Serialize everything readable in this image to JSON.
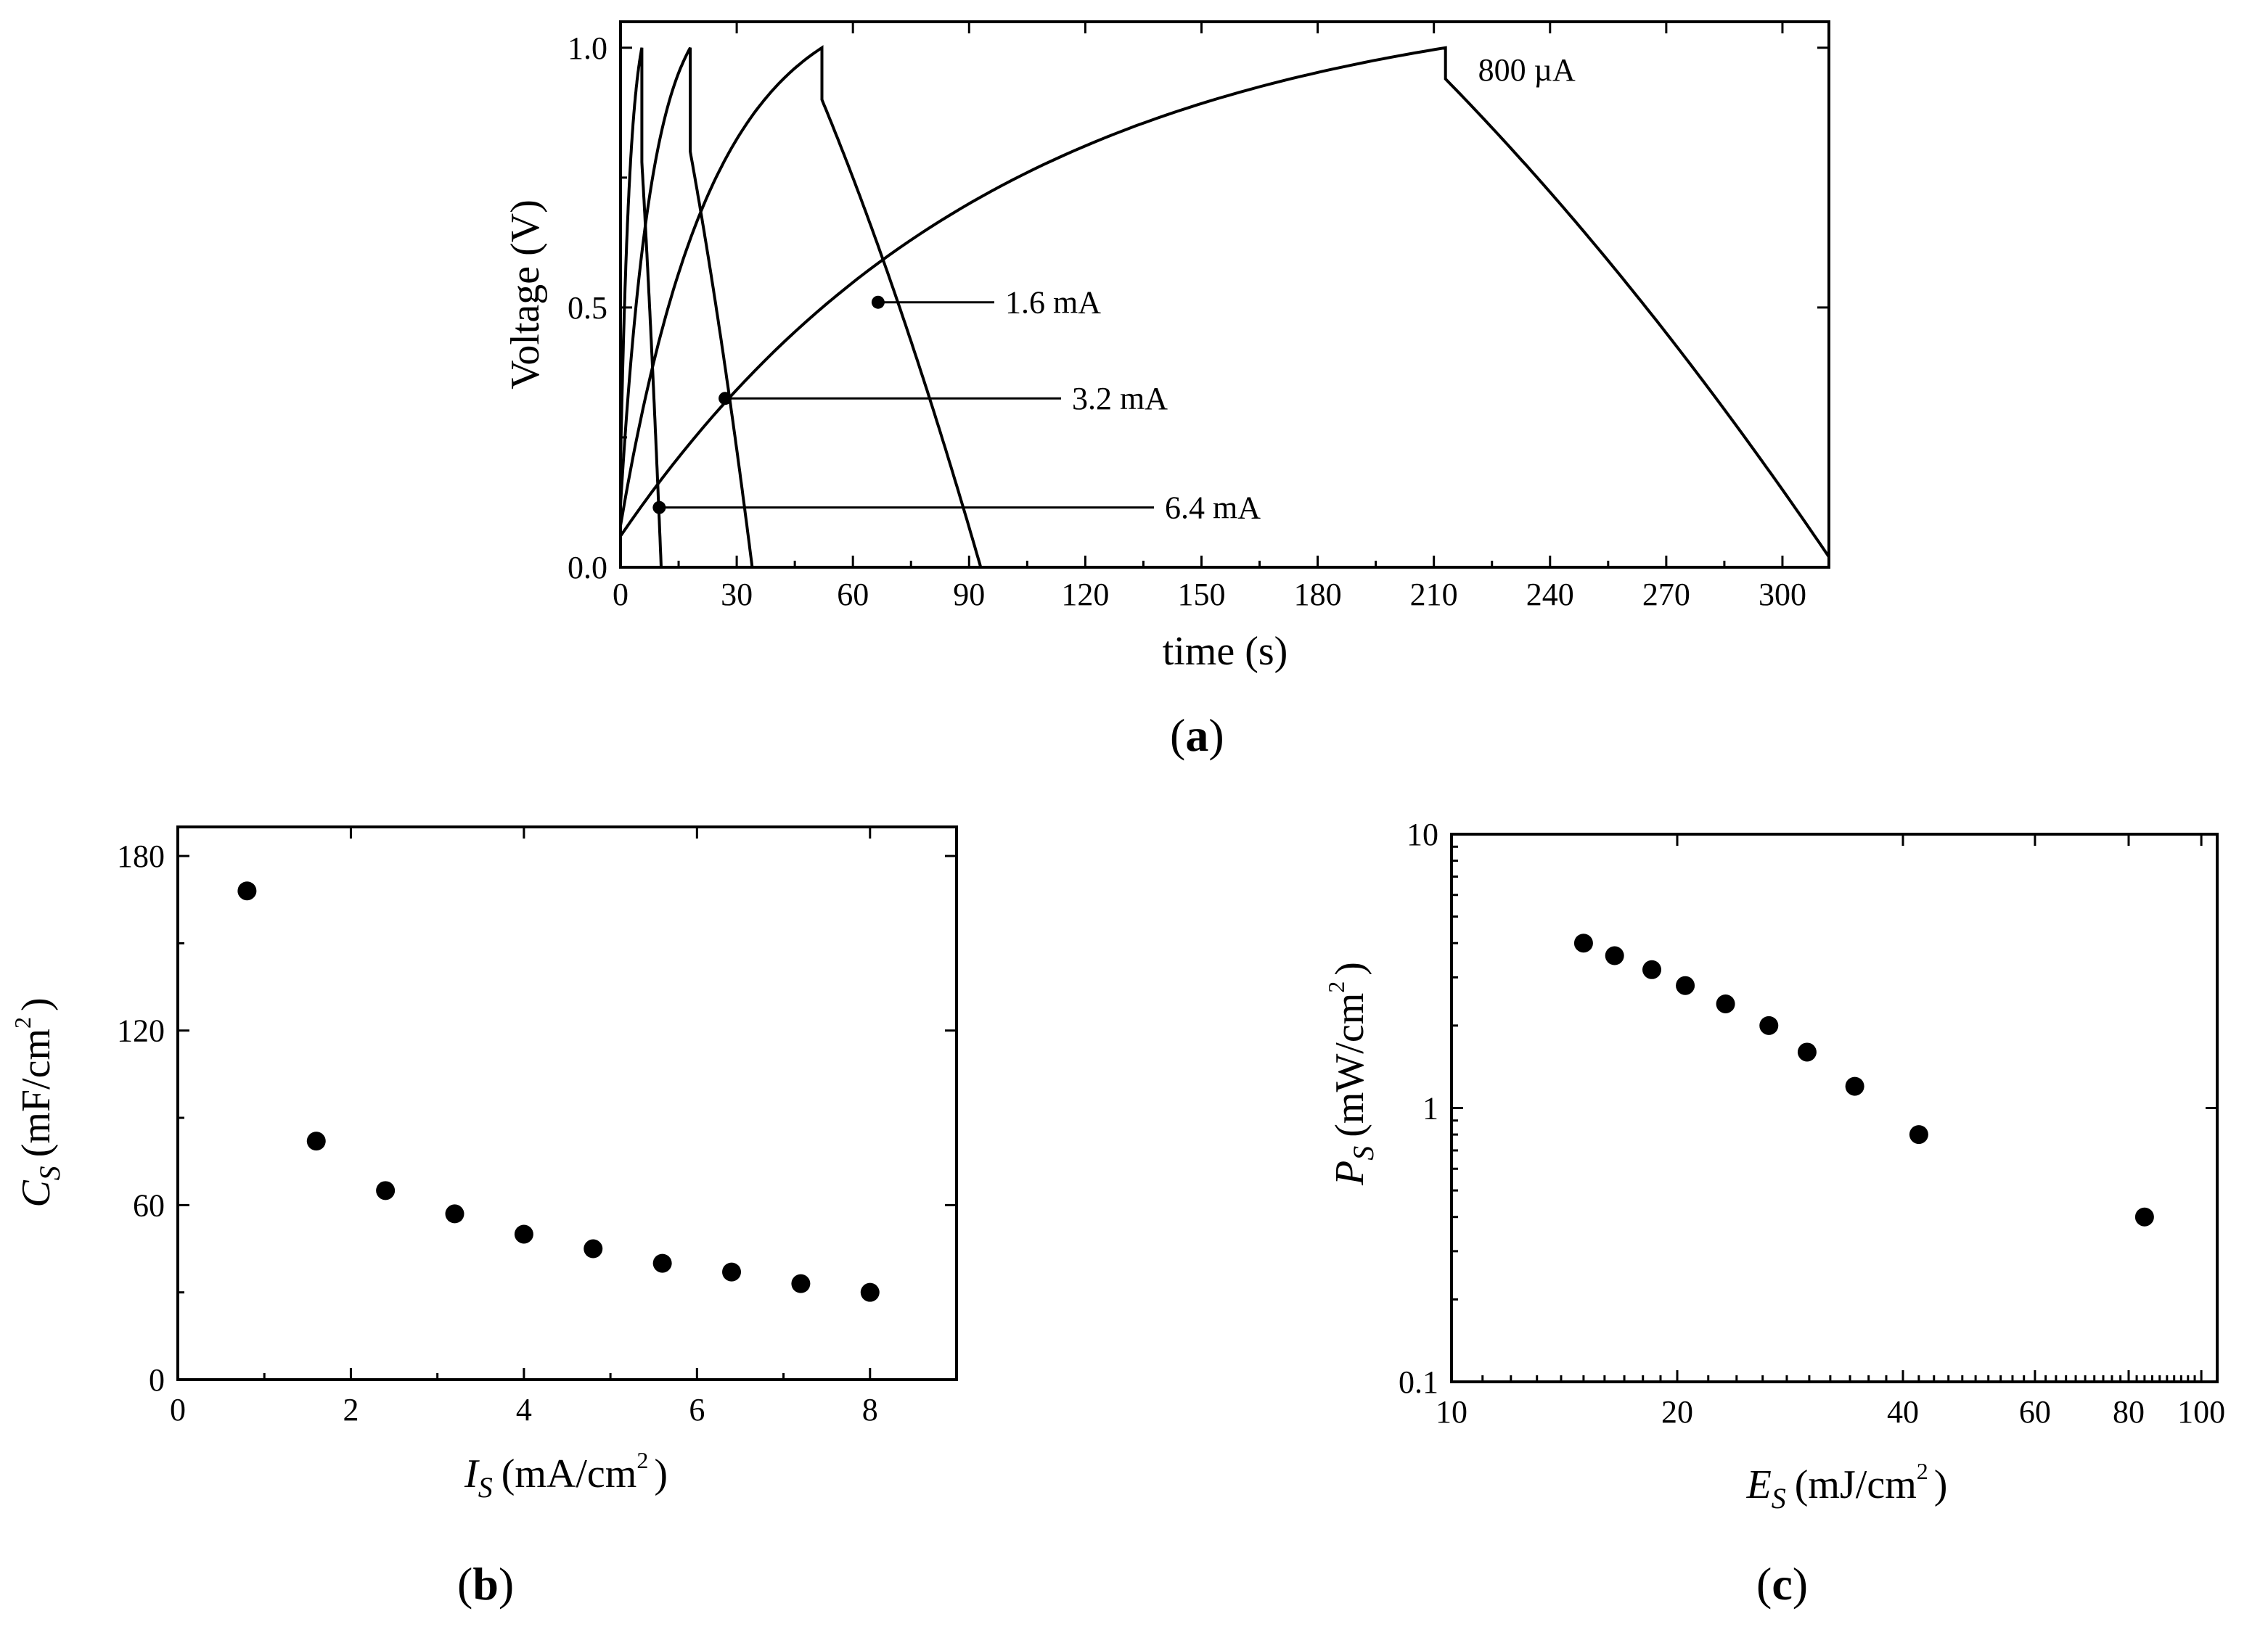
{
  "chart_data": [
    {
      "type": "line",
      "panel": "a",
      "xlabel": "time (s)",
      "ylabel": "Voltage (V)",
      "xlim": [
        0,
        312
      ],
      "ylim": [
        0,
        1.05
      ],
      "xticks": [
        0,
        30,
        60,
        90,
        120,
        150,
        180,
        210,
        240,
        270,
        300
      ],
      "yticks": [
        0.0,
        0.5,
        1.0
      ],
      "ytick_labels": [
        "0.0",
        "0.5",
        "1.0"
      ],
      "series": [
        {
          "name": "6.4 mA",
          "charge_time": 5.5,
          "discharge_end": 10.5,
          "drop_to": 0.78,
          "start_v": 0.2,
          "label_point": [
            10,
            0.115
          ]
        },
        {
          "name": "3.2 mA",
          "charge_time": 18,
          "discharge_end": 34,
          "drop_to": 0.8,
          "start_v": 0.12,
          "label_point": [
            27,
            0.325
          ]
        },
        {
          "name": "1.6 mA",
          "charge_time": 52,
          "discharge_end": 93,
          "drop_to": 0.9,
          "start_v": 0.08,
          "label_point": [
            66.5,
            0.51
          ]
        },
        {
          "name": "800 µA",
          "charge_time": 213,
          "discharge_end": 312,
          "drop_to": 0.94,
          "start_v": 0.06,
          "end_v": 0.02
        }
      ]
    },
    {
      "type": "scatter",
      "panel": "b",
      "xlabel": "I",
      "xlabel_sub": "S",
      "xlabel_unit": "(mA/cm",
      "xlabel_sup": "2",
      "ylabel": "C",
      "ylabel_sub": "S",
      "ylabel_unit": "(mF/cm",
      "ylabel_sup": "2",
      "xlim": [
        0,
        9
      ],
      "ylim": [
        0,
        190
      ],
      "xticks": [
        0,
        2,
        4,
        6,
        8
      ],
      "yticks": [
        0,
        60,
        120,
        180
      ],
      "x": [
        0.8,
        1.6,
        2.4,
        3.2,
        4.0,
        4.8,
        5.6,
        6.4,
        7.2,
        8.0
      ],
      "y": [
        168,
        82,
        65,
        57,
        50,
        45,
        40,
        37,
        33,
        30
      ]
    },
    {
      "type": "scatter",
      "panel": "c",
      "xscale": "log",
      "yscale": "log",
      "xlabel": "E",
      "xlabel_sub": "S",
      "xlabel_unit": "(mJ/cm",
      "xlabel_sup": "2",
      "ylabel": "P",
      "ylabel_sub": "S",
      "ylabel_unit": "(mW/cm",
      "ylabel_sup": "2",
      "xlim": [
        10,
        105
      ],
      "ylim": [
        0.1,
        10
      ],
      "xticks": [
        10,
        20,
        40,
        60,
        80,
        100
      ],
      "yticks": [
        0.1,
        1,
        10
      ],
      "ytick_labels": [
        "0.1",
        "1",
        "10"
      ],
      "x": [
        15,
        16.5,
        18.5,
        20.5,
        23.2,
        26.5,
        29.8,
        34.5,
        42.0,
        84.0
      ],
      "y": [
        4.0,
        3.6,
        3.2,
        2.8,
        2.4,
        2.0,
        1.6,
        1.2,
        0.8,
        0.4
      ]
    }
  ],
  "panels": {
    "a": "(a)",
    "b": "(b)",
    "c": "(c)"
  },
  "close_paren": ")"
}
